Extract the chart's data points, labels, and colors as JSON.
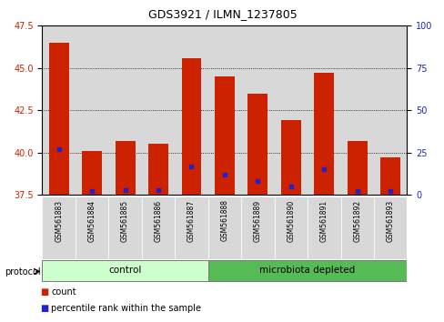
{
  "title": "GDS3921 / ILMN_1237805",
  "samples": [
    "GSM561883",
    "GSM561884",
    "GSM561885",
    "GSM561886",
    "GSM561887",
    "GSM561888",
    "GSM561889",
    "GSM561890",
    "GSM561891",
    "GSM561892",
    "GSM561893"
  ],
  "counts": [
    46.5,
    40.1,
    40.7,
    40.5,
    45.6,
    44.5,
    43.5,
    41.9,
    44.7,
    40.7,
    39.7
  ],
  "percentile_ranks": [
    27,
    2,
    3,
    3,
    17,
    12,
    8,
    5,
    15,
    2,
    2
  ],
  "ylim_left": [
    37.5,
    47.5
  ],
  "ylim_right": [
    0,
    100
  ],
  "yticks_left": [
    37.5,
    40.0,
    42.5,
    45.0,
    47.5
  ],
  "yticks_right": [
    0,
    25,
    50,
    75,
    100
  ],
  "bar_color": "#cc2200",
  "marker_color": "#2222cc",
  "bar_bottom": 37.5,
  "groups": [
    {
      "label": "control",
      "start": 0,
      "end": 5,
      "color": "#ccffcc"
    },
    {
      "label": "microbiota depleted",
      "start": 5,
      "end": 11,
      "color": "#55bb55"
    }
  ],
  "protocol_label": "protocol",
  "legend_items": [
    {
      "label": "count",
      "color": "#cc2200"
    },
    {
      "label": "percentile rank within the sample",
      "color": "#2222cc"
    }
  ],
  "grid_color": "black",
  "axis_bg": "#d8d8d8",
  "title_fontsize": 9,
  "tick_fontsize": 7,
  "label_fontsize": 8
}
